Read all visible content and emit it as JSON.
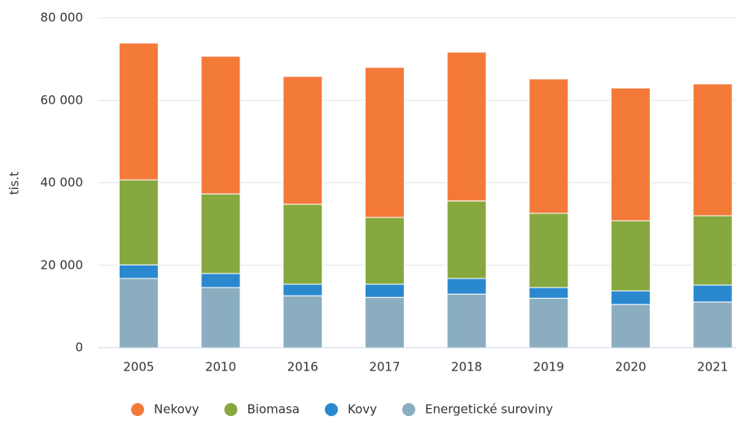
{
  "chart_data": {
    "type": "stacked_bar",
    "y_label": "tis.t",
    "categories": [
      "2005",
      "2010",
      "2016",
      "2017",
      "2018",
      "2019",
      "2020",
      "2021"
    ],
    "series": [
      {
        "name": "Nekovy",
        "color": "#f47a3a",
        "values": [
          33200,
          33400,
          31000,
          36400,
          36100,
          32600,
          32200,
          32000
        ]
      },
      {
        "name": "Biomasa",
        "color": "#86a83e",
        "values": [
          20600,
          19300,
          19400,
          16200,
          18800,
          18000,
          17000,
          16800
        ]
      },
      {
        "name": "Kovy",
        "color": "#2a88cf",
        "values": [
          3300,
          3400,
          2800,
          3200,
          3800,
          2600,
          3300,
          4100
        ]
      },
      {
        "name": "Energetické suroviny",
        "color": "#8aaebf",
        "values": [
          16800,
          14600,
          12600,
          12200,
          13000,
          12000,
          10500,
          11100
        ]
      }
    ],
    "ylim": [
      0,
      80000
    ],
    "yticks": [
      0,
      {
        "value": 20000,
        "label": "20 000"
      },
      {
        "value": 40000,
        "label": "40 000"
      },
      {
        "value": 60000,
        "label": "60 000"
      },
      {
        "value": 80000,
        "label": "80 000"
      }
    ],
    "grid": true,
    "legend": "bottom"
  }
}
